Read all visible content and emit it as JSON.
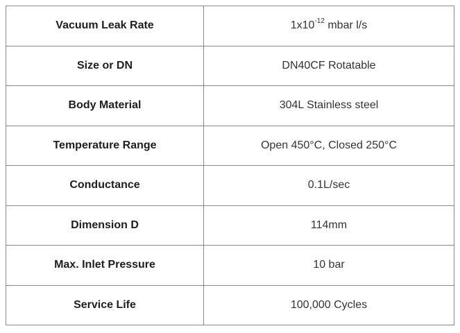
{
  "rows": [
    {
      "label": "Vacuum Leak Rate",
      "value_base": "1x10",
      "value_exp": "-12",
      "value_unit": " mbar l/s"
    },
    {
      "label": "Size or DN",
      "value": "DN40CF Rotatable"
    },
    {
      "label": "Body Material",
      "value": "304L Stainless steel"
    },
    {
      "label": "Temperature Range",
      "value": "Open 450°C, Closed 250°C"
    },
    {
      "label": "Conductance",
      "value": "0.1L/sec"
    },
    {
      "label": "Dimension D",
      "value": "114mm"
    },
    {
      "label": "Max. Inlet Pressure",
      "value": "10 bar"
    },
    {
      "label": "Service Life",
      "value": "100,000 Cycles"
    }
  ]
}
